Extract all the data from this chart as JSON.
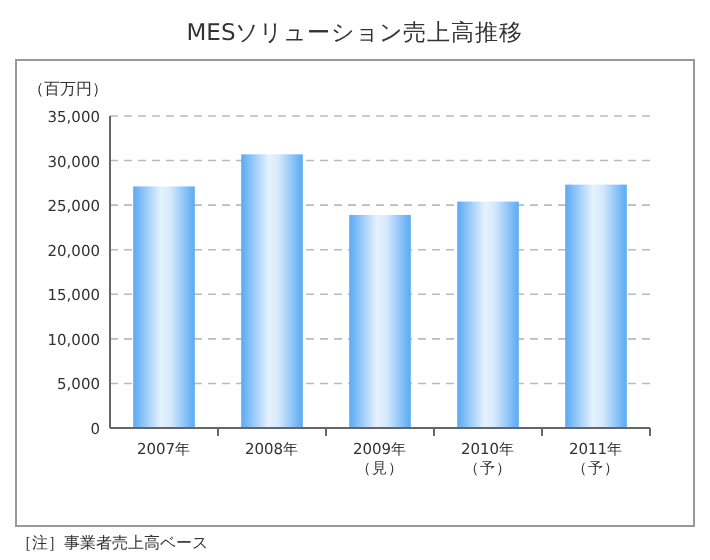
{
  "chart_data": {
    "type": "bar",
    "title": "MESソリューション売上高推移",
    "ylabel": "（百万円）",
    "categories": [
      "2007年",
      "2008年",
      "2009年（見）",
      "2010年（予）",
      "2011年（予）"
    ],
    "values": [
      27100,
      30700,
      23900,
      25400,
      27300
    ],
    "color": "#5aa9f5",
    "ylim": [
      0,
      35000
    ],
    "yticks": [
      {
        "value": 0,
        "label": "0"
      },
      {
        "value": 5000,
        "label": "5,000"
      },
      {
        "value": 10000,
        "label": "10,000"
      },
      {
        "value": 15000,
        "label": "15,000"
      },
      {
        "value": 20000,
        "label": "20,000"
      },
      {
        "value": 25000,
        "label": "25,000"
      },
      {
        "value": 30000,
        "label": "30,000"
      },
      {
        "value": 35000,
        "label": "35,000"
      }
    ],
    "grid": "y",
    "annotations": [
      "［注］事業者売上高ベース"
    ]
  }
}
